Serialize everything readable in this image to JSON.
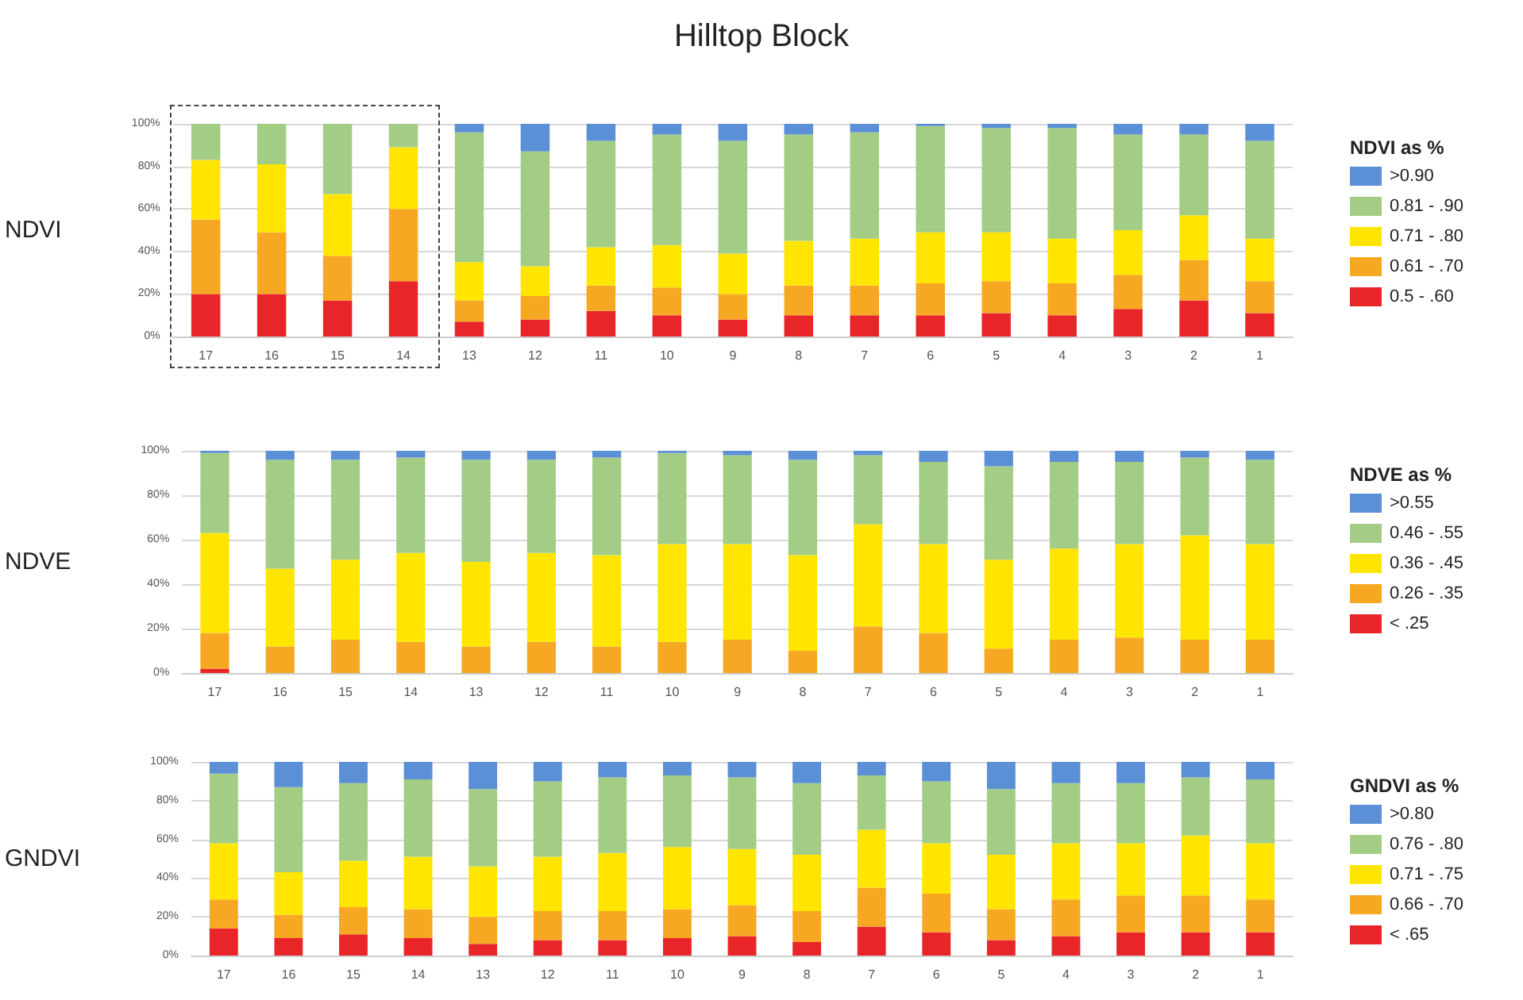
{
  "chart_data": [
    {
      "type": "bar",
      "title": "Hilltop Block",
      "ylabel": "NDVI",
      "legend_title": "NDVI as %",
      "stacked": true,
      "grid": "y",
      "legend": "right",
      "categories": [
        "17",
        "16",
        "15",
        "14",
        "13",
        "12",
        "11",
        "10",
        "9",
        "8",
        "7",
        "6",
        "5",
        "4",
        "3",
        "2",
        "1"
      ],
      "ylim": [
        0,
        100
      ],
      "yticks": [
        {
          "value": 0,
          "label": "0%"
        },
        {
          "value": 20,
          "label": "20%"
        },
        {
          "value": 40,
          "label": "40%"
        },
        {
          "value": 60,
          "label": "60%"
        },
        {
          "value": 80,
          "label": "80%"
        },
        {
          "value": 100,
          "label": "100%"
        }
      ],
      "series": [
        {
          "name": "0.5 - .60",
          "color": "#e8262a",
          "values": [
            20,
            20,
            17,
            26,
            7,
            8,
            12,
            10,
            8,
            10,
            10,
            10,
            11,
            10,
            13,
            17,
            11
          ]
        },
        {
          "name": "0.61 - .70",
          "color": "#f7a823",
          "values": [
            35,
            29,
            21,
            34,
            10,
            11,
            12,
            13,
            12,
            14,
            14,
            15,
            15,
            15,
            16,
            19,
            15
          ]
        },
        {
          "name": "0.71 - .80",
          "color": "#ffe500",
          "values": [
            28,
            32,
            29,
            29,
            18,
            14,
            18,
            20,
            19,
            21,
            22,
            24,
            23,
            21,
            21,
            21,
            20
          ]
        },
        {
          "name": "0.81 - .90",
          "color": "#a3cc85",
          "values": [
            17,
            19,
            33,
            11,
            61,
            54,
            50,
            52,
            53,
            50,
            50,
            50,
            49,
            52,
            45,
            38,
            46
          ]
        },
        {
          "name": ">0.90",
          "color": "#5b8fd6",
          "values": [
            0,
            0,
            0,
            0,
            4,
            13,
            8,
            5,
            8,
            5,
            4,
            1,
            2,
            2,
            5,
            5,
            8
          ]
        }
      ]
    },
    {
      "type": "bar",
      "ylabel": "NDVE",
      "legend_title": "NDVE as %",
      "stacked": true,
      "grid": "y",
      "legend": "right",
      "categories": [
        "17",
        "16",
        "15",
        "14",
        "13",
        "12",
        "11",
        "10",
        "9",
        "8",
        "7",
        "6",
        "5",
        "4",
        "3",
        "2",
        "1"
      ],
      "ylim": [
        0,
        100
      ],
      "yticks": [
        {
          "value": 0,
          "label": "0%"
        },
        {
          "value": 20,
          "label": "20%"
        },
        {
          "value": 40,
          "label": "40%"
        },
        {
          "value": 60,
          "label": "60%"
        },
        {
          "value": 80,
          "label": "80%"
        },
        {
          "value": 100,
          "label": "100%"
        }
      ],
      "series": [
        {
          "name": "< .25",
          "color": "#e8262a",
          "values": [
            2,
            0,
            0,
            0,
            0,
            0,
            0,
            0,
            0,
            0,
            0,
            0,
            0,
            0,
            0,
            0,
            0
          ]
        },
        {
          "name": "0.26 - .35",
          "color": "#f7a823",
          "values": [
            16,
            12,
            15,
            14,
            12,
            14,
            12,
            14,
            15,
            10,
            21,
            18,
            11,
            15,
            16,
            15,
            15
          ]
        },
        {
          "name": "0.36 - .45",
          "color": "#ffe500",
          "values": [
            45,
            35,
            36,
            40,
            38,
            40,
            41,
            44,
            43,
            43,
            46,
            40,
            40,
            41,
            42,
            47,
            43
          ]
        },
        {
          "name": "0.46 - .55",
          "color": "#a3cc85",
          "values": [
            36,
            49,
            45,
            43,
            46,
            42,
            44,
            41,
            40,
            43,
            31,
            37,
            42,
            39,
            37,
            35,
            38
          ]
        },
        {
          "name": ">0.55",
          "color": "#5b8fd6",
          "values": [
            1,
            4,
            4,
            3,
            4,
            4,
            3,
            1,
            2,
            4,
            2,
            5,
            7,
            5,
            5,
            3,
            4
          ]
        }
      ]
    },
    {
      "type": "bar",
      "ylabel": "GNDVI",
      "legend_title": "GNDVI as %",
      "stacked": true,
      "grid": "y",
      "legend": "right",
      "categories": [
        "17",
        "16",
        "15",
        "14",
        "13",
        "12",
        "11",
        "10",
        "9",
        "8",
        "7",
        "6",
        "5",
        "4",
        "3",
        "2",
        "1"
      ],
      "ylim": [
        0,
        100
      ],
      "yticks": [
        {
          "value": 0,
          "label": "0%"
        },
        {
          "value": 20,
          "label": "20%"
        },
        {
          "value": 40,
          "label": "40%"
        },
        {
          "value": 60,
          "label": "60%"
        },
        {
          "value": 80,
          "label": "80%"
        },
        {
          "value": 100,
          "label": "100%"
        }
      ],
      "series": [
        {
          "name": "< .65",
          "color": "#e8262a",
          "values": [
            14,
            9,
            11,
            9,
            6,
            8,
            8,
            9,
            10,
            7,
            15,
            12,
            8,
            10,
            12,
            12,
            12
          ]
        },
        {
          "name": "0.66 - .70",
          "color": "#f7a823",
          "values": [
            15,
            12,
            14,
            15,
            14,
            15,
            15,
            15,
            16,
            16,
            20,
            20,
            16,
            19,
            19,
            19,
            17
          ]
        },
        {
          "name": "0.71 - .75",
          "color": "#ffe500",
          "values": [
            29,
            22,
            24,
            27,
            26,
            28,
            30,
            32,
            29,
            29,
            30,
            26,
            28,
            29,
            27,
            31,
            29
          ]
        },
        {
          "name": "0.76 - .80",
          "color": "#a3cc85",
          "values": [
            36,
            44,
            40,
            40,
            40,
            39,
            39,
            37,
            37,
            37,
            28,
            32,
            34,
            31,
            31,
            30,
            33
          ]
        },
        {
          "name": ">0.80",
          "color": "#5b8fd6",
          "values": [
            6,
            13,
            11,
            9,
            14,
            10,
            8,
            7,
            8,
            11,
            7,
            10,
            14,
            11,
            11,
            8,
            9
          ]
        }
      ]
    }
  ]
}
